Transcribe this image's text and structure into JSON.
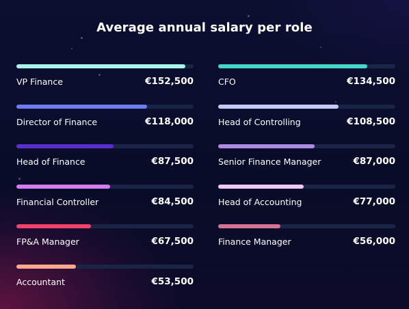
{
  "title": "Average annual salary per role",
  "chart_data": {
    "type": "bar",
    "title": "Average annual salary per role",
    "currency": "€",
    "bar_scale_max": 160000,
    "track_color": "#1a2446",
    "series": [
      {
        "role": "VP Finance",
        "label": "€152,500",
        "value": 152500,
        "color": "#a6f4ec",
        "column": "left"
      },
      {
        "role": "Director of Finance",
        "label": "€118,000",
        "value": 118000,
        "color": "#6e7cf0",
        "column": "left"
      },
      {
        "role": "Head of Finance",
        "label": "€87,500",
        "value": 87500,
        "color": "#5b2fcf",
        "column": "left"
      },
      {
        "role": "Financial Controller",
        "label": "€84,500",
        "value": 84500,
        "color": "#d27cf0",
        "column": "left"
      },
      {
        "role": "FP&A Manager",
        "label": "€67,500",
        "value": 67500,
        "color": "#f0426a",
        "column": "left"
      },
      {
        "role": "Accountant",
        "label": "€53,500",
        "value": 53500,
        "color": "#ffa88e",
        "column": "left"
      },
      {
        "role": "CFO",
        "label": "€134,500",
        "value": 134500,
        "color": "#44d6c8",
        "column": "right"
      },
      {
        "role": "Head of Controlling",
        "label": "€108,500",
        "value": 108500,
        "color": "#c3c9f8",
        "column": "right"
      },
      {
        "role": "Senior Finance Manager",
        "label": "€87,000",
        "value": 87000,
        "color": "#ad8ae2",
        "column": "right"
      },
      {
        "role": "Head of Accounting",
        "label": "€77,000",
        "value": 77000,
        "color": "#f1c7f6",
        "column": "right"
      },
      {
        "role": "Finance Manager",
        "label": "€56,000",
        "value": 56000,
        "color": "#d67292",
        "column": "right"
      }
    ]
  }
}
